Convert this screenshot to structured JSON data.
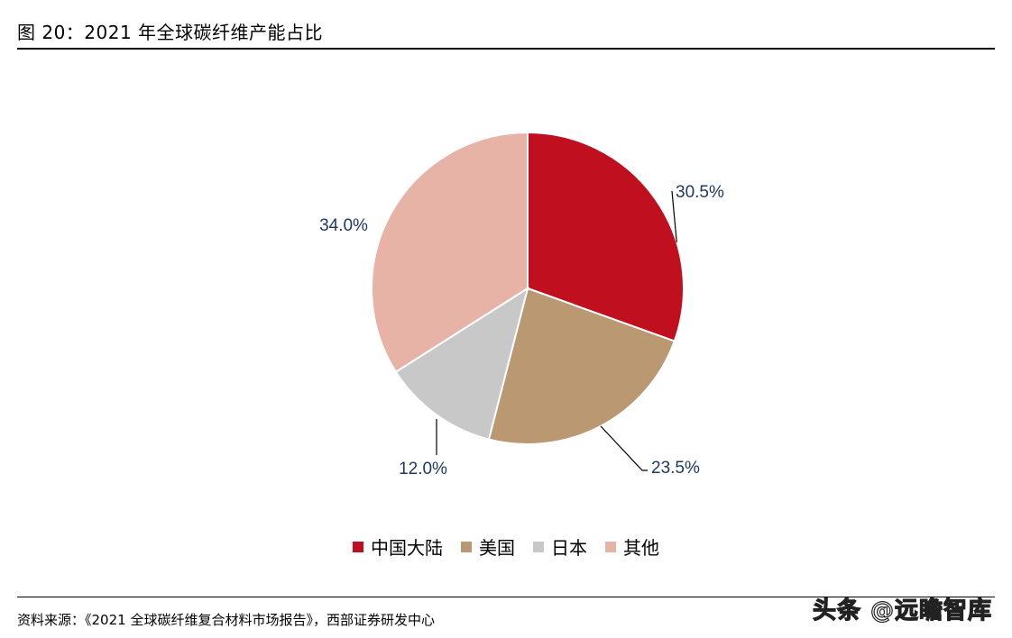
{
  "figure": {
    "title": "图 20：2021 年全球碳纤维产能占比"
  },
  "chart_data": {
    "type": "pie",
    "categories": [
      "中国大陆",
      "美国",
      "日本",
      "其他"
    ],
    "values": [
      30.5,
      23.5,
      12.0,
      34.0
    ],
    "data_labels": [
      "30.5%",
      "23.5%",
      "12.0%",
      "34.0%"
    ],
    "colors": [
      "#c00f1e",
      "#b99872",
      "#c8c8c8",
      "#e8b3a7"
    ],
    "start": "12 o'clock",
    "direction": "clockwise",
    "legend_position": "bottom"
  },
  "source": "资料来源：《2021 全球碳纤维复合材料市场报告》，西部证券研发中心",
  "watermark": "头条 @远瞻智库"
}
